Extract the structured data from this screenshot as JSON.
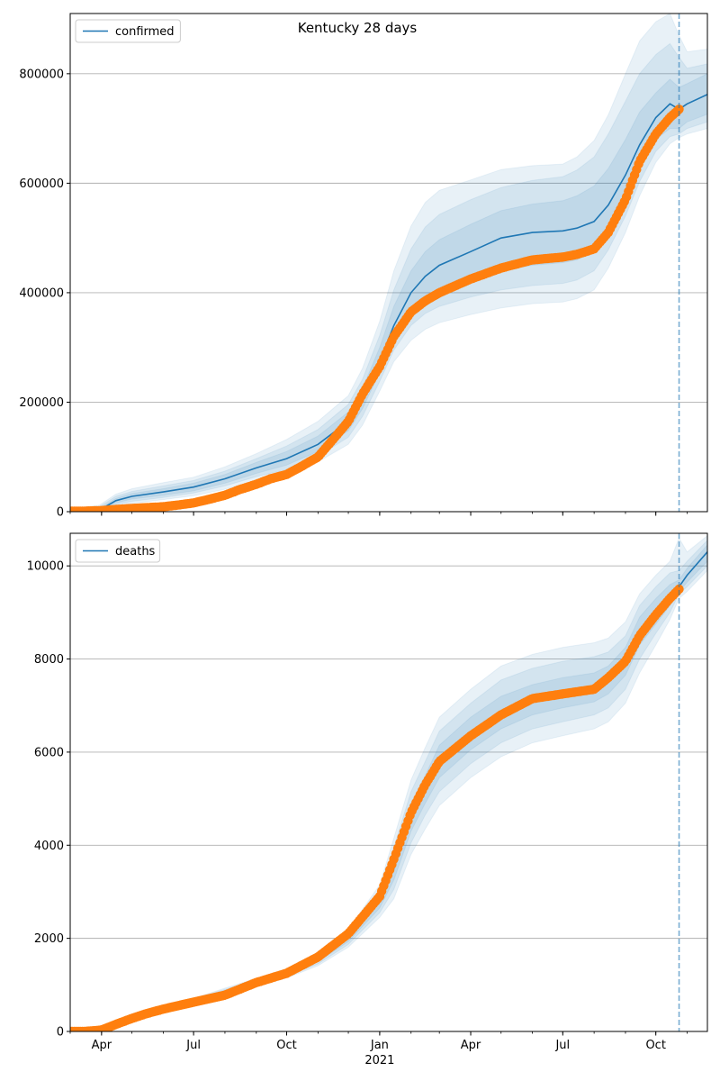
{
  "figure": {
    "title": "Kentucky 28 days"
  },
  "colors": {
    "model_line": "#1f77b4",
    "band": "#1f77b4",
    "observed": "#ff7f0e",
    "grid": "#b0b0b0",
    "forecast_marker": "#1f77b4"
  },
  "chart_data": [
    {
      "type": "line",
      "panel": "confirmed",
      "legend_label": "confirmed",
      "legend_position": "top-left",
      "grid_y": true,
      "x_range": [
        "2020-03-01",
        "2021-11-21"
      ],
      "ylim": [
        0,
        910000
      ],
      "y_ticks": [
        0,
        200000,
        400000,
        600000,
        800000
      ],
      "y_tick_labels": [
        "0",
        "200000",
        "400000",
        "600000",
        "800000"
      ],
      "forecast_start": "2021-10-24",
      "model_series": {
        "name": "confirmed",
        "x": [
          "2020-03-01",
          "2020-03-30",
          "2020-04-15",
          "2020-05-01",
          "2020-06-01",
          "2020-07-01",
          "2020-08-01",
          "2020-09-01",
          "2020-10-01",
          "2020-11-01",
          "2020-12-01",
          "2020-12-15",
          "2021-01-01",
          "2021-01-15",
          "2021-02-01",
          "2021-02-15",
          "2021-03-01",
          "2021-04-01",
          "2021-05-01",
          "2021-06-01",
          "2021-07-01",
          "2021-07-15",
          "2021-08-01",
          "2021-08-15",
          "2021-09-01",
          "2021-09-15",
          "2021-10-01",
          "2021-10-15",
          "2021-10-24",
          "2021-11-01",
          "2021-11-21"
        ],
        "values": [
          1000,
          3000,
          20000,
          28000,
          36000,
          45000,
          60000,
          80000,
          97000,
          123000,
          165000,
          205000,
          275000,
          340000,
          400000,
          430000,
          450000,
          475000,
          500000,
          510000,
          513000,
          518000,
          530000,
          560000,
          615000,
          670000,
          720000,
          745000,
          735000,
          745000,
          762000
        ],
        "band_inner_low": [
          0,
          0,
          16000,
          23000,
          30000,
          38000,
          52000,
          70000,
          85000,
          110000,
          148000,
          188000,
          255000,
          315000,
          365000,
          390000,
          405000,
          425000,
          440000,
          450000,
          455000,
          460000,
          475000,
          510000,
          570000,
          630000,
          680000,
          700000,
          700000,
          712000,
          726000
        ],
        "band_inner_high": [
          2000,
          6000,
          24000,
          33000,
          42000,
          52000,
          68000,
          90000,
          110000,
          138000,
          182000,
          225000,
          300000,
          375000,
          440000,
          475000,
          497000,
          525000,
          550000,
          562000,
          568000,
          577000,
          595000,
          627000,
          680000,
          730000,
          765000,
          790000,
          775000,
          782000,
          800000
        ],
        "band_mid_low": [
          0,
          0,
          13000,
          19000,
          26000,
          34000,
          47000,
          64000,
          77000,
          101000,
          136000,
          174000,
          238000,
          295000,
          340000,
          362000,
          375000,
          392000,
          405000,
          413000,
          417000,
          423000,
          440000,
          478000,
          540000,
          603000,
          658000,
          685000,
          690000,
          700000,
          712000
        ],
        "band_mid_high": [
          3000,
          9000,
          28000,
          37000,
          47000,
          57000,
          74000,
          97000,
          120000,
          150000,
          196000,
          242000,
          322000,
          405000,
          480000,
          520000,
          543000,
          570000,
          592000,
          605000,
          612000,
          624000,
          648000,
          690000,
          750000,
          800000,
          835000,
          855000,
          830000,
          810000,
          818000
        ],
        "band_outer_low": [
          0,
          0,
          10000,
          15000,
          22000,
          29000,
          41000,
          57000,
          68000,
          91000,
          123000,
          158000,
          220000,
          274000,
          313000,
          333000,
          345000,
          360000,
          372000,
          380000,
          383000,
          389000,
          405000,
          445000,
          510000,
          577000,
          638000,
          672000,
          683000,
          690000,
          700000
        ],
        "band_outer_high": [
          4000,
          12000,
          32000,
          42000,
          53000,
          63000,
          82000,
          106000,
          132000,
          165000,
          212000,
          262000,
          348000,
          440000,
          522000,
          565000,
          587000,
          606000,
          625000,
          632000,
          635000,
          648000,
          678000,
          725000,
          800000,
          860000,
          895000,
          910000,
          870000,
          840000,
          845000
        ]
      },
      "observed_series": {
        "name": "observed",
        "x": [
          "2020-03-01",
          "2020-03-15",
          "2020-04-01",
          "2020-04-15",
          "2020-05-01",
          "2020-06-01",
          "2020-06-15",
          "2020-07-01",
          "2020-07-15",
          "2020-08-01",
          "2020-08-15",
          "2020-09-01",
          "2020-09-15",
          "2020-10-01",
          "2020-10-15",
          "2020-11-01",
          "2020-11-15",
          "2020-12-01",
          "2020-12-15",
          "2021-01-01",
          "2021-01-15",
          "2021-02-01",
          "2021-02-15",
          "2021-03-01",
          "2021-04-01",
          "2021-05-01",
          "2021-06-01",
          "2021-07-01",
          "2021-07-15",
          "2021-08-01",
          "2021-08-15",
          "2021-09-01",
          "2021-09-15",
          "2021-10-01",
          "2021-10-15",
          "2021-10-24"
        ],
        "values": [
          1000,
          1000,
          2000,
          4000,
          6000,
          9000,
          12000,
          16000,
          22000,
          30000,
          40000,
          50000,
          60000,
          68000,
          82000,
          100000,
          130000,
          165000,
          215000,
          265000,
          320000,
          365000,
          385000,
          400000,
          425000,
          445000,
          460000,
          465000,
          470000,
          480000,
          510000,
          570000,
          640000,
          690000,
          720000,
          735000
        ]
      }
    },
    {
      "type": "line",
      "panel": "deaths",
      "legend_label": "deaths",
      "legend_position": "top-left",
      "grid_y": true,
      "x_range": [
        "2020-03-01",
        "2021-11-21"
      ],
      "ylim": [
        0,
        10700
      ],
      "y_ticks": [
        0,
        2000,
        4000,
        6000,
        8000,
        10000
      ],
      "y_tick_labels": [
        "0",
        "2000",
        "4000",
        "6000",
        "8000",
        "10000"
      ],
      "x_tick_labels": [
        "Apr",
        "Jul",
        "Oct",
        "Jan",
        "Apr",
        "Jul",
        "Oct"
      ],
      "x_tick_dates": [
        "2020-04-01",
        "2020-07-01",
        "2020-10-01",
        "2021-01-01",
        "2021-04-01",
        "2021-07-01",
        "2021-10-01"
      ],
      "year_label": "2021",
      "forecast_start": "2021-10-24",
      "model_series": {
        "name": "deaths",
        "x": [
          "2020-03-01",
          "2020-04-01",
          "2020-05-01",
          "2020-06-01",
          "2020-07-01",
          "2020-08-01",
          "2020-09-01",
          "2020-10-01",
          "2020-11-01",
          "2020-12-01",
          "2021-01-01",
          "2021-01-15",
          "2021-02-01",
          "2021-02-15",
          "2021-03-01",
          "2021-04-01",
          "2021-05-01",
          "2021-06-01",
          "2021-07-01",
          "2021-08-01",
          "2021-08-15",
          "2021-09-01",
          "2021-09-15",
          "2021-10-01",
          "2021-10-15",
          "2021-10-24",
          "2021-11-01",
          "2021-11-21"
        ],
        "values": [
          0,
          50,
          320,
          500,
          650,
          850,
          1050,
          1250,
          1550,
          2000,
          2800,
          3500,
          4600,
          5200,
          5800,
          6400,
          6850,
          7150,
          7280,
          7380,
          7550,
          7950,
          8600,
          9000,
          9350,
          9550,
          9800,
          10300
        ],
        "band_inner_low": [
          0,
          40,
          300,
          480,
          630,
          820,
          1020,
          1210,
          1500,
          1930,
          2650,
          3250,
          4300,
          4900,
          5450,
          6050,
          6500,
          6800,
          6950,
          7080,
          7250,
          7650,
          8300,
          8750,
          9150,
          9450,
          9650,
          10100
        ],
        "band_inner_high": [
          0,
          60,
          340,
          520,
          670,
          880,
          1080,
          1290,
          1600,
          2070,
          2950,
          3750,
          4900,
          5500,
          6150,
          6750,
          7200,
          7450,
          7600,
          7700,
          7850,
          8250,
          8900,
          9300,
          9600,
          9700,
          9950,
          10450
        ],
        "band_mid_low": [
          0,
          30,
          280,
          460,
          610,
          795,
          990,
          1180,
          1450,
          1870,
          2550,
          3050,
          4050,
          4650,
          5150,
          5750,
          6200,
          6500,
          6650,
          6800,
          6950,
          7350,
          8000,
          8550,
          9000,
          9400,
          9550,
          10000
        ],
        "band_mid_high": [
          0,
          70,
          360,
          540,
          690,
          905,
          1110,
          1320,
          1650,
          2130,
          3050,
          3950,
          5150,
          5800,
          6450,
          7050,
          7550,
          7800,
          7950,
          8050,
          8150,
          8500,
          9150,
          9550,
          9850,
          9900,
          10100,
          10550
        ],
        "band_outer_low": [
          0,
          20,
          260,
          440,
          590,
          770,
          960,
          1150,
          1410,
          1810,
          2450,
          2850,
          3800,
          4350,
          4850,
          5450,
          5900,
          6200,
          6350,
          6500,
          6650,
          7050,
          7700,
          8300,
          8850,
          9300,
          9450,
          9900
        ],
        "band_outer_high": [
          0,
          80,
          380,
          560,
          710,
          930,
          1140,
          1350,
          1700,
          2190,
          3150,
          4150,
          5400,
          6100,
          6750,
          7350,
          7850,
          8100,
          8250,
          8350,
          8450,
          8800,
          9400,
          9800,
          10100,
          10600,
          10300,
          10650
        ]
      },
      "observed_series": {
        "name": "observed",
        "x": [
          "2020-03-01",
          "2020-03-15",
          "2020-04-01",
          "2020-04-15",
          "2020-05-01",
          "2020-05-15",
          "2020-06-01",
          "2020-07-01",
          "2020-08-01",
          "2020-09-01",
          "2020-10-01",
          "2020-11-01",
          "2020-12-01",
          "2021-01-01",
          "2021-01-15",
          "2021-02-01",
          "2021-02-15",
          "2021-03-01",
          "2021-04-01",
          "2021-05-01",
          "2021-06-01",
          "2021-07-01",
          "2021-08-01",
          "2021-08-15",
          "2021-09-01",
          "2021-09-15",
          "2021-10-01",
          "2021-10-15",
          "2021-10-24"
        ],
        "values": [
          0,
          0,
          30,
          150,
          280,
          380,
          480,
          630,
          780,
          1050,
          1250,
          1600,
          2100,
          2900,
          3700,
          4700,
          5300,
          5800,
          6350,
          6800,
          7150,
          7250,
          7350,
          7600,
          7950,
          8500,
          8950,
          9300,
          9500
        ]
      }
    }
  ]
}
